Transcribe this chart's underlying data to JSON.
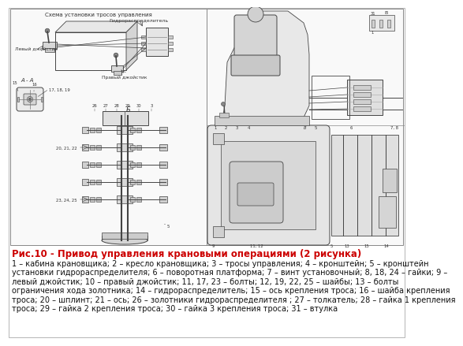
{
  "title": "Рис.10 - Привод управления крановыми операциями (2 рисунка)",
  "title_color": "#cc0000",
  "title_fontsize": 8.5,
  "description_lines": [
    "1 – кабина крановщика; 2 – кресло крановщика; 3 – тросы управления; 4 – кронштейн; 5 – кронштейн",
    "установки гидрораспределителя; 6 – поворотная платформа; 7 – винт установочный; 8, 18, 24 – гайки; 9 –",
    "левый джойстик; 10 – правый джойстик; 11, 17, 23 – болты; 12, 19, 22, 25 – шайбы; 13 – болты",
    "ограничения хода золотника; 14 – гидрораспределитель; 15 – ось крепления троса; 16 – шайба крепления",
    "троса; 20 – шплинт; 21 – ось; 26 – золотники гидрораспределителя ; 27 – толкатель; 28 – гайка 1 крепления",
    "троса; 29 – гайка 2 крепления троса; 30 – гайка 3 крепления троса; 31 – втулка"
  ],
  "desc_fontsize": 7.0,
  "background_color": "#ffffff",
  "lc": "#444444",
  "lw": 0.6,
  "header_text": "Схема установки тросов управления",
  "hydro_label": "Гидрораспределитель",
  "left_joy_label": "Левый джойстик",
  "right_joy_label": "Правый джойстик",
  "label_AA": "A - A",
  "label_B": "Б",
  "tc": "#333333",
  "fs_small": 4.5,
  "fs_tiny": 3.8
}
